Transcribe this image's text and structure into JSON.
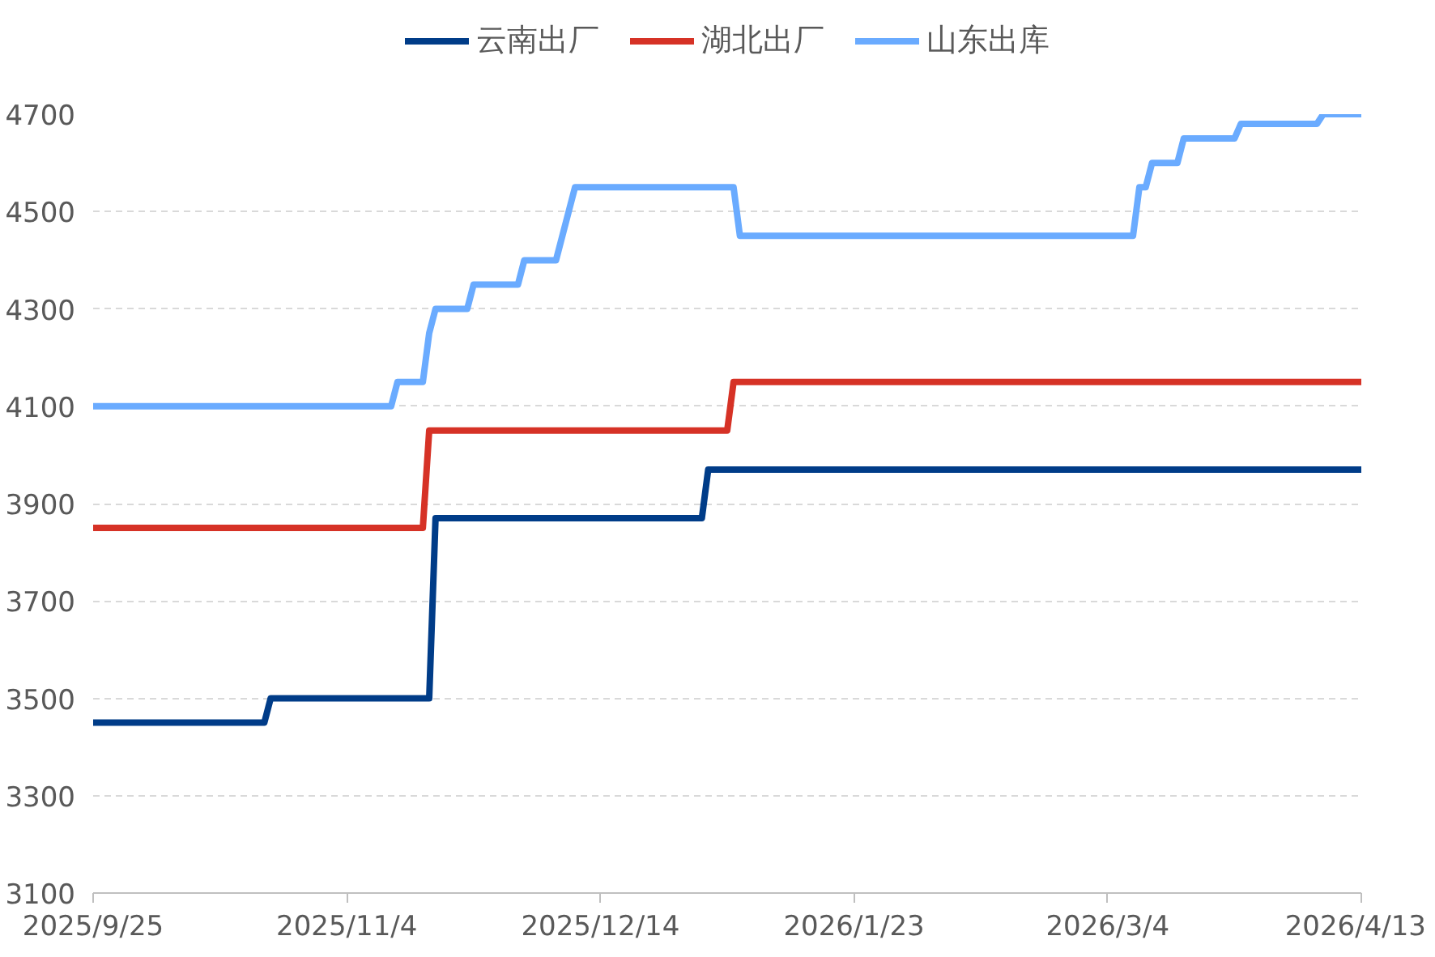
{
  "chart_data": {
    "type": "line",
    "legend": "top",
    "grid": "y",
    "line_style": "solid",
    "marker": "none",
    "xlim": [
      "2025-09-25",
      "2026-04-13"
    ],
    "xticks": [
      {
        "value": "2025-09-25",
        "label": "2025/9/25"
      },
      {
        "value": "2025-11-04",
        "label": "2025/11/4"
      },
      {
        "value": "2025-12-14",
        "label": "2025/12/14"
      },
      {
        "value": "2026-01-23",
        "label": "2026/1/23"
      },
      {
        "value": "2026-03-04",
        "label": "2026/3/4"
      },
      {
        "value": "2026-04-13",
        "label": "2026/4/13"
      }
    ],
    "ylim": [
      3100,
      4700
    ],
    "yticks": [
      3100,
      3300,
      3500,
      3700,
      3900,
      4100,
      4300,
      4500,
      4700
    ],
    "series": [
      {
        "name": "云南出厂",
        "color": "#003c88",
        "x": [
          "2025-09-25",
          "2025-10-22",
          "2025-10-23",
          "2025-11-17",
          "2025-11-18",
          "2025-12-30",
          "2025-12-31",
          "2026-04-13"
        ],
        "values": [
          3450,
          3450,
          3500,
          3500,
          3870,
          3870,
          3970,
          3970
        ]
      },
      {
        "name": "湖北出厂",
        "color": "#d63226",
        "x": [
          "2025-09-25",
          "2025-11-16",
          "2025-11-17",
          "2026-01-03",
          "2026-01-04",
          "2026-04-13"
        ],
        "values": [
          3850,
          3850,
          4050,
          4050,
          4150,
          4150
        ]
      },
      {
        "name": "山东出库",
        "color": "#6aabff",
        "x": [
          "2025-09-25",
          "2025-11-11",
          "2025-11-12",
          "2025-11-16",
          "2025-11-17",
          "2025-11-18",
          "2025-11-23",
          "2025-11-24",
          "2025-12-01",
          "2025-12-02",
          "2025-12-07",
          "2025-12-10",
          "2026-01-04",
          "2026-01-05",
          "2026-03-08",
          "2026-03-09",
          "2026-03-10",
          "2026-03-11",
          "2026-03-15",
          "2026-03-16",
          "2026-03-24",
          "2026-03-25",
          "2026-04-06",
          "2026-04-07",
          "2026-04-13"
        ],
        "values": [
          4100,
          4100,
          4150,
          4150,
          4250,
          4300,
          4300,
          4350,
          4350,
          4400,
          4400,
          4550,
          4550,
          4450,
          4450,
          4550,
          4550,
          4600,
          4600,
          4650,
          4650,
          4680,
          4680,
          4700,
          4700
        ]
      }
    ]
  }
}
